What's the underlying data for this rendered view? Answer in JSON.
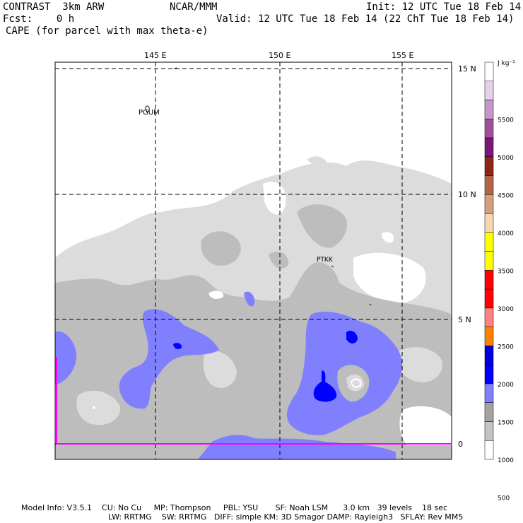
{
  "header": {
    "model": "CONTRAST  3km ARW",
    "center": "NCAR/MMM",
    "init": "Init: 12 UTC Tue 18 Feb 14",
    "fcst": "Fcst:    0 h",
    "valid": "Valid: 12 UTC Tue 18 Feb 14 (22 ChT Tue 18 Feb 14)",
    "field": "CAPE (for parcel with max theta-e)"
  },
  "map": {
    "lon_labels": [
      "145 E",
      "150 E",
      "155 E"
    ],
    "lat_labels": [
      "15 N",
      "10 N",
      "5 N",
      "0"
    ],
    "stations": [
      "PGUM",
      "PTKK"
    ]
  },
  "colorbar": {
    "units": "J kg⁻¹",
    "labels": [
      "5500",
      "5000",
      "4500",
      "4000",
      "3500",
      "3000",
      "2500",
      "2000",
      "1500",
      "1000",
      "500"
    ],
    "colors": [
      "#ffffff",
      "#c4c4c4",
      "#a3a3a3",
      "#8080ff",
      "#0000ff",
      "#0000dc",
      "#ff8000",
      "#ff8080",
      "#ff0000",
      "#ff0000",
      "#ffff00",
      "#ffff00",
      "#f5d7b4",
      "#d2a07d",
      "#b46446",
      "#8c2814",
      "#7d1478",
      "#a0509b",
      "#c896c8",
      "#e6d2e6",
      "#ffffff"
    ]
  },
  "footer": {
    "line1": "Model Info: V3.5.1    CU: No Cu     MP: Thompson     PBL: YSU       SF: Noah LSM      3.0 km   39 levels    18 sec",
    "line2": "LW: RRTMG    SW: RRTMG   DIFF: simple KM: 3D Smagor DAMP: Rayleigh3   SFLAY: Rev MM5"
  }
}
